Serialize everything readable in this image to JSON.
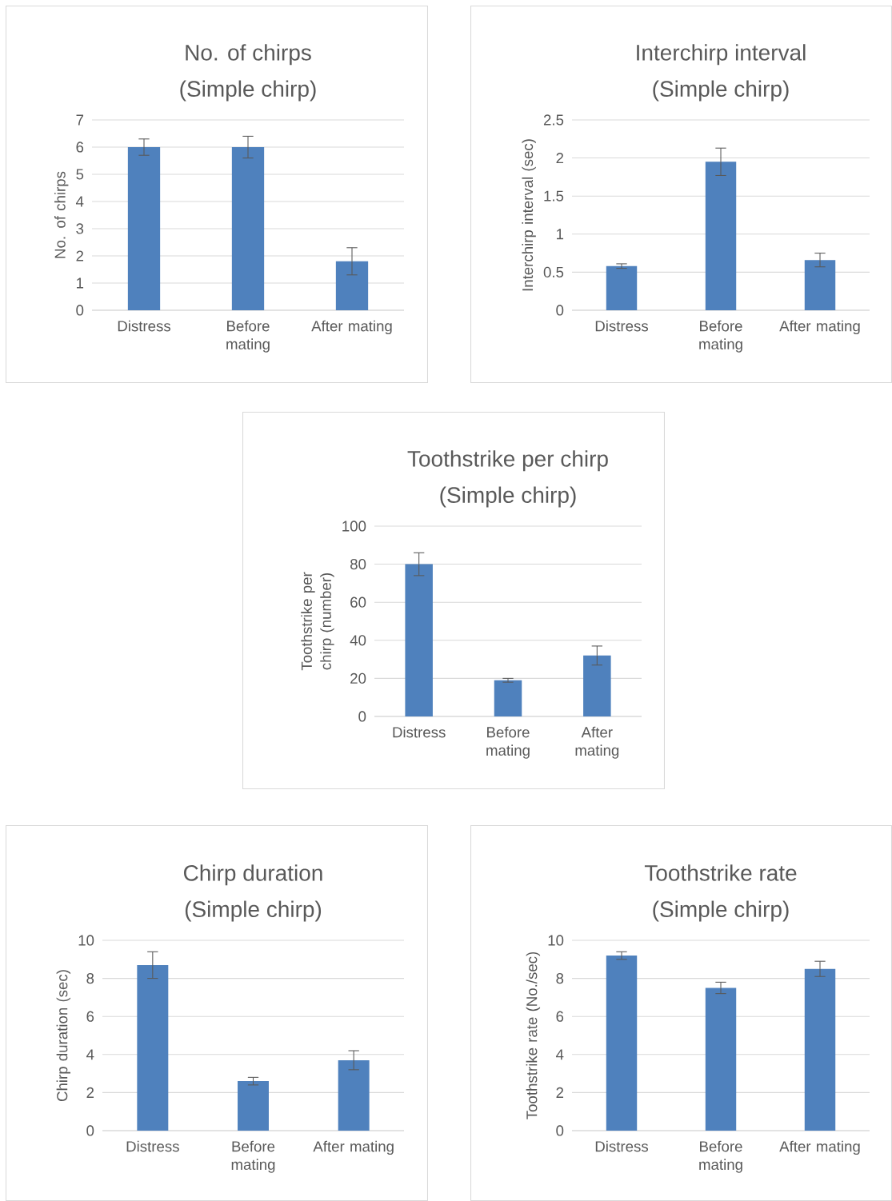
{
  "chart_data": [
    {
      "type": "bar",
      "title": "No. of chirps",
      "subtitle": "(Simple chirp)",
      "ylabel": "No. of chirps",
      "categories": [
        "Distress",
        "Before mating",
        "After mating"
      ],
      "values": [
        6.0,
        6.0,
        1.8
      ],
      "errors": [
        0.3,
        0.4,
        0.5
      ],
      "color": "#4f81bd",
      "ylim": [
        0,
        7
      ],
      "yticks": [
        0,
        1,
        2,
        3,
        4,
        5,
        6,
        7
      ],
      "grid": "y"
    },
    {
      "type": "bar",
      "title": "Interchirp interval",
      "subtitle": "(Simple chirp)",
      "ylabel": "Interchirp interval (sec)",
      "categories": [
        "Distress",
        "Before mating",
        "After mating"
      ],
      "values": [
        0.58,
        1.95,
        0.66
      ],
      "errors": [
        0.03,
        0.18,
        0.09
      ],
      "color": "#4f81bd",
      "ylim": [
        0,
        2.5
      ],
      "yticks": [
        0,
        0.5,
        1,
        1.5,
        2,
        2.5
      ],
      "grid": "y"
    },
    {
      "type": "bar",
      "title": "Toothstrike per chirp",
      "subtitle": "(Simple chirp)",
      "ylabel": "Toothstrike per chirp (number)",
      "categories": [
        "Distress",
        "Before mating",
        "After mating"
      ],
      "values": [
        80,
        19,
        32
      ],
      "errors": [
        6,
        1,
        5
      ],
      "color": "#4f81bd",
      "ylim": [
        0,
        100
      ],
      "yticks": [
        0,
        20,
        40,
        60,
        80,
        100
      ],
      "grid": "y"
    },
    {
      "type": "bar",
      "title": "Chirp duration",
      "subtitle": "(Simple chirp)",
      "ylabel": "Chirp duration (sec)",
      "categories": [
        "Distress",
        "Before mating",
        "After mating"
      ],
      "values": [
        8.7,
        2.6,
        3.7
      ],
      "errors": [
        0.7,
        0.2,
        0.5
      ],
      "color": "#4f81bd",
      "ylim": [
        0,
        10
      ],
      "yticks": [
        0,
        2,
        4,
        6,
        8,
        10
      ],
      "grid": "y"
    },
    {
      "type": "bar",
      "title": "Toothstrike rate",
      "subtitle": "(Simple chirp)",
      "ylabel": "Toothstrike rate (No./sec)",
      "categories": [
        "Distress",
        "Before mating",
        "After mating"
      ],
      "values": [
        9.2,
        7.5,
        8.5
      ],
      "errors": [
        0.2,
        0.3,
        0.4
      ],
      "color": "#4f81bd",
      "ylim": [
        0,
        10
      ],
      "yticks": [
        0,
        2,
        4,
        6,
        8,
        10
      ],
      "grid": "y"
    }
  ]
}
